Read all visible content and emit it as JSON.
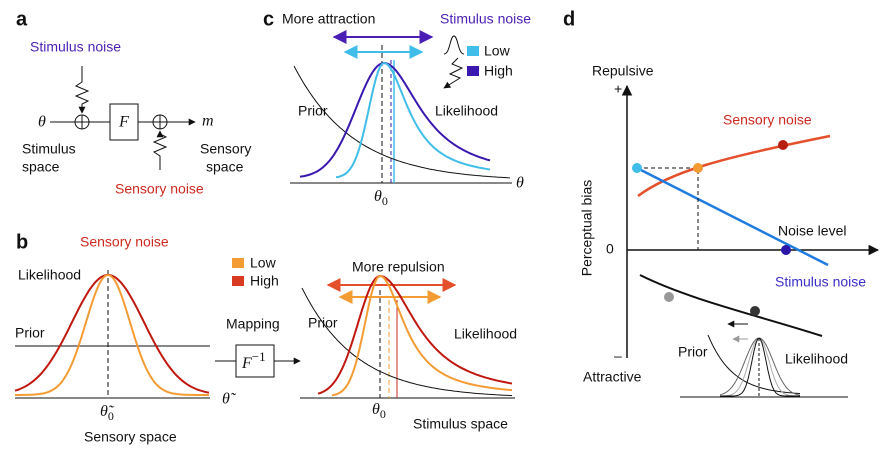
{
  "panel_a": {
    "label": "a",
    "stimulus_noise": "Stimulus noise",
    "theta": "θ",
    "mapping": "F",
    "output": "m",
    "stimulus_space": [
      "Stimulus",
      "space"
    ],
    "sensory_space": [
      "Sensory",
      "space"
    ],
    "sensory_noise": "Sensory noise"
  },
  "panel_b": {
    "label": "b",
    "sensory_noise": "Sensory noise",
    "legend": [
      "Low",
      "High"
    ],
    "likelihood": "Likelihood",
    "prior": "Prior",
    "axis": "θ̃",
    "peak": {
      "symbol": "θ̃",
      "subscript": "0"
    },
    "space": "Sensory space",
    "mapping": "Mapping",
    "inverse": {
      "symbol": "F",
      "superscript": "−1"
    },
    "repulsion": "More repulsion",
    "prior_right": "Prior",
    "likelihood_right": "Likelihood",
    "peak_right": {
      "symbol": "θ",
      "subscript": "0"
    },
    "space_right": "Stimulus space"
  },
  "panel_c": {
    "label": "c",
    "attraction": "More attraction",
    "stimulus_noise": "Stimulus noise",
    "legend": [
      "Low",
      "High"
    ],
    "prior": "Prior",
    "likelihood": "Likelihood",
    "axis": "θ",
    "peak": {
      "symbol": "θ",
      "subscript": "0"
    }
  },
  "panel_d": {
    "label": "d",
    "repulsive": "Repulsive",
    "plus": "+",
    "ylabel": "Perceptual bias",
    "zero": "0",
    "sensory_noise": "Sensory noise",
    "noise_level": "Noise level",
    "stimulus_noise": "Stimulus noise",
    "minus": "–",
    "attractive": "Attractive",
    "prior": "Prior",
    "likelihood": "Likelihood"
  }
}
